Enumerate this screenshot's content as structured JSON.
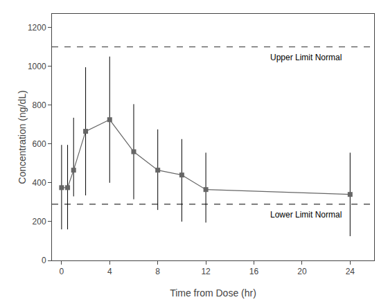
{
  "chart_data": {
    "type": "line",
    "x": [
      0,
      0.5,
      1,
      2,
      4,
      6,
      8,
      10,
      12,
      24
    ],
    "values": [
      375,
      375,
      465,
      665,
      725,
      560,
      465,
      440,
      365,
      340
    ],
    "error_upper": [
      220,
      220,
      270,
      330,
      325,
      245,
      210,
      185,
      190,
      215
    ],
    "error_lower": [
      215,
      215,
      135,
      330,
      325,
      245,
      205,
      240,
      170,
      215
    ],
    "color": "#666666",
    "marker": "square",
    "line_style": "solid",
    "reference_lines": [
      {
        "value": 1100,
        "label": "Upper Limit Normal",
        "color": "#555555",
        "line_style": "dashed"
      },
      {
        "value": 290,
        "label": "Lower Limit Normal",
        "color": "#555555",
        "line_style": "dashed"
      }
    ],
    "xlabel": "Time from Dose (hr)",
    "ylabel": "Concentration (ng/dL)",
    "xlim": [
      -0.8,
      26
    ],
    "ylim": [
      0,
      1270
    ],
    "xticks": [
      0,
      4,
      8,
      12,
      16,
      20,
      24
    ],
    "yticks": [
      0,
      200,
      400,
      600,
      800,
      1000,
      1200
    ],
    "grid": false
  }
}
